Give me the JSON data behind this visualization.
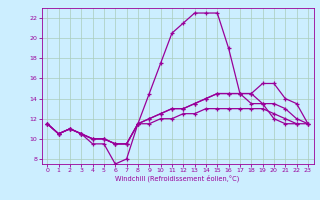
{
  "xlabel": "Windchill (Refroidissement éolien,°C)",
  "bg_color": "#cceeff",
  "line_color": "#990099",
  "grid_color": "#aaccbb",
  "xlim": [
    -0.5,
    23.5
  ],
  "ylim": [
    7.5,
    23.0
  ],
  "xticks": [
    0,
    1,
    2,
    3,
    4,
    5,
    6,
    7,
    8,
    9,
    10,
    11,
    12,
    13,
    14,
    15,
    16,
    17,
    18,
    19,
    20,
    21,
    22,
    23
  ],
  "yticks": [
    8,
    10,
    12,
    14,
    16,
    18,
    20,
    22
  ],
  "lines": [
    {
      "x": [
        0,
        1,
        2,
        3,
        4,
        5,
        6,
        7,
        8,
        9,
        10,
        11,
        12,
        13,
        14,
        15,
        16,
        17,
        18,
        19,
        20,
        21,
        22
      ],
      "y": [
        11.5,
        10.5,
        11.0,
        10.5,
        9.5,
        9.5,
        7.5,
        8.0,
        11.5,
        14.5,
        17.5,
        20.5,
        21.5,
        22.5,
        22.5,
        22.5,
        19.0,
        14.5,
        13.5,
        13.5,
        12.0,
        11.5,
        11.5
      ]
    },
    {
      "x": [
        0,
        1,
        2,
        3,
        4,
        5,
        6,
        7,
        8,
        9,
        10,
        11,
        12,
        13,
        14,
        15,
        16,
        17,
        18,
        19,
        20,
        21,
        22,
        23
      ],
      "y": [
        11.5,
        10.5,
        11.0,
        10.5,
        10.0,
        10.0,
        9.5,
        9.5,
        11.5,
        12.0,
        12.5,
        13.0,
        13.0,
        13.5,
        14.0,
        14.5,
        14.5,
        14.5,
        14.5,
        15.5,
        15.5,
        14.0,
        13.5,
        11.5
      ]
    },
    {
      "x": [
        0,
        1,
        2,
        3,
        4,
        5,
        6,
        7,
        8,
        9,
        10,
        11,
        12,
        13,
        14,
        15,
        16,
        17,
        18,
        19,
        20,
        21,
        22,
        23
      ],
      "y": [
        11.5,
        10.5,
        11.0,
        10.5,
        10.0,
        10.0,
        9.5,
        9.5,
        11.5,
        12.0,
        12.5,
        13.0,
        13.0,
        13.5,
        14.0,
        14.5,
        14.5,
        14.5,
        14.5,
        13.5,
        13.5,
        13.0,
        12.0,
        11.5
      ]
    },
    {
      "x": [
        0,
        1,
        2,
        3,
        4,
        5,
        6,
        7,
        8,
        9,
        10,
        11,
        12,
        13,
        14,
        15,
        16,
        17,
        18,
        19,
        20,
        21,
        22,
        23
      ],
      "y": [
        11.5,
        10.5,
        11.0,
        10.5,
        10.0,
        10.0,
        9.5,
        9.5,
        11.5,
        11.5,
        12.0,
        12.0,
        12.5,
        12.5,
        13.0,
        13.0,
        13.0,
        13.0,
        13.0,
        13.0,
        12.5,
        12.0,
        11.5,
        11.5
      ]
    }
  ]
}
